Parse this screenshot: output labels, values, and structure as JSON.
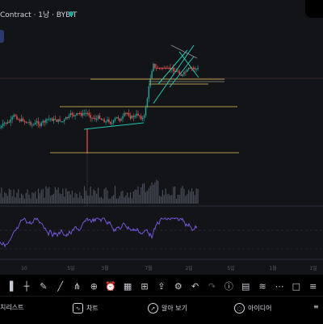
{
  "header": {
    "symbol_title": "Contract · 1낭 · BYBIT"
  },
  "x_axis": {
    "ticks": [
      "10",
      "5일",
      "3월",
      "7월",
      "2일",
      "5일",
      "1월",
      "1일"
    ]
  },
  "toolbar": {
    "items": [
      "bars-icon",
      "crosshair-icon",
      "pencil-icon",
      "trendline-icon",
      "fork-icon",
      "add-icon",
      "alarm-icon",
      "template-icon",
      "indicators-icon",
      "share-icon",
      "settings-icon",
      "undo-icon",
      "redo-icon",
      "info-icon",
      "compare-icon",
      "lines-icon",
      "more-icon",
      "fullscreen-icon",
      "menu-icon"
    ]
  },
  "tabs": {
    "watchlist": "치리스트",
    "chart": "차트",
    "explore": "알아 보기",
    "ideas": "아이디어"
  },
  "colors": {
    "background": "#121418",
    "up_candle": "#26a69a",
    "down_candle": "#ef5350",
    "hline": "#b09a4a",
    "trendline": "#22c8b0",
    "oscillator": "#7b5ce6"
  }
}
